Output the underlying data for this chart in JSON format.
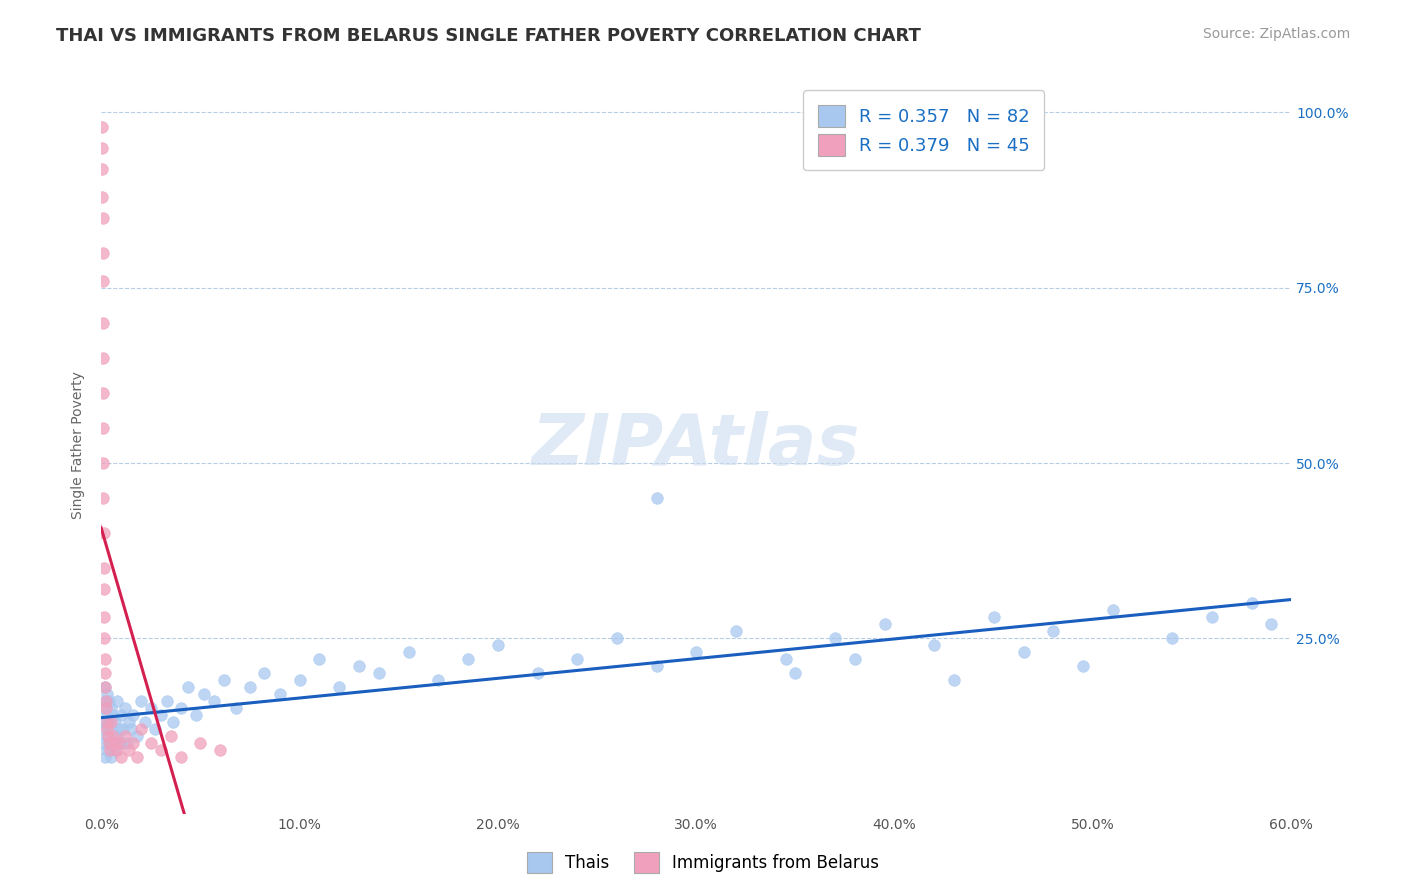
{
  "title": "THAI VS IMMIGRANTS FROM BELARUS SINGLE FATHER POVERTY CORRELATION CHART",
  "source": "Source: ZipAtlas.com",
  "ylabel": "Single Father Poverty",
  "xlim": [
    0.0,
    0.6
  ],
  "ylim": [
    0.0,
    1.05
  ],
  "xtick_labels": [
    "0.0%",
    "10.0%",
    "20.0%",
    "30.0%",
    "40.0%",
    "50.0%",
    "60.0%"
  ],
  "xtick_vals": [
    0.0,
    0.1,
    0.2,
    0.3,
    0.4,
    0.5,
    0.6
  ],
  "ytick_vals": [
    0.25,
    0.5,
    0.75,
    1.0
  ],
  "right_ytick_labels": [
    "25.0%",
    "50.0%",
    "75.0%",
    "100.0%"
  ],
  "thai_color": "#a8c8f0",
  "belarus_color": "#f0a0bc",
  "thai_line_color": "#1a5fbf",
  "belarus_line_color": "#d42050",
  "R_thai": 0.357,
  "N_thai": 82,
  "R_belarus": 0.379,
  "N_belarus": 45,
  "legend_label_thai": "Thais",
  "legend_label_belarus": "Immigrants from Belarus",
  "thai_x": [
    0.001,
    0.001,
    0.001,
    0.002,
    0.002,
    0.002,
    0.002,
    0.003,
    0.003,
    0.003,
    0.003,
    0.004,
    0.004,
    0.004,
    0.005,
    0.005,
    0.005,
    0.006,
    0.006,
    0.007,
    0.007,
    0.008,
    0.008,
    0.009,
    0.01,
    0.01,
    0.011,
    0.012,
    0.013,
    0.014,
    0.015,
    0.016,
    0.018,
    0.02,
    0.022,
    0.025,
    0.027,
    0.03,
    0.033,
    0.036,
    0.04,
    0.044,
    0.048,
    0.052,
    0.057,
    0.062,
    0.068,
    0.075,
    0.082,
    0.09,
    0.1,
    0.11,
    0.12,
    0.13,
    0.14,
    0.155,
    0.17,
    0.185,
    0.2,
    0.22,
    0.24,
    0.26,
    0.28,
    0.3,
    0.32,
    0.345,
    0.37,
    0.395,
    0.42,
    0.45,
    0.48,
    0.51,
    0.54,
    0.56,
    0.58,
    0.59,
    0.28,
    0.35,
    0.38,
    0.43,
    0.465,
    0.495
  ],
  "thai_y": [
    0.1,
    0.12,
    0.15,
    0.08,
    0.13,
    0.16,
    0.18,
    0.09,
    0.11,
    0.14,
    0.17,
    0.1,
    0.13,
    0.16,
    0.08,
    0.12,
    0.15,
    0.1,
    0.14,
    0.09,
    0.13,
    0.11,
    0.16,
    0.12,
    0.1,
    0.14,
    0.12,
    0.15,
    0.1,
    0.13,
    0.12,
    0.14,
    0.11,
    0.16,
    0.13,
    0.15,
    0.12,
    0.14,
    0.16,
    0.13,
    0.15,
    0.18,
    0.14,
    0.17,
    0.16,
    0.19,
    0.15,
    0.18,
    0.2,
    0.17,
    0.19,
    0.22,
    0.18,
    0.21,
    0.2,
    0.23,
    0.19,
    0.22,
    0.24,
    0.2,
    0.22,
    0.25,
    0.21,
    0.23,
    0.26,
    0.22,
    0.25,
    0.27,
    0.24,
    0.28,
    0.26,
    0.29,
    0.25,
    0.28,
    0.3,
    0.27,
    0.45,
    0.2,
    0.22,
    0.19,
    0.23,
    0.21
  ],
  "belarus_x": [
    0.0005,
    0.0005,
    0.0006,
    0.0006,
    0.0007,
    0.0007,
    0.0008,
    0.0008,
    0.0009,
    0.0009,
    0.001,
    0.001,
    0.001,
    0.0012,
    0.0013,
    0.0014,
    0.0015,
    0.0016,
    0.0018,
    0.002,
    0.002,
    0.0022,
    0.0025,
    0.003,
    0.003,
    0.0035,
    0.004,
    0.0045,
    0.005,
    0.006,
    0.007,
    0.008,
    0.009,
    0.01,
    0.012,
    0.014,
    0.016,
    0.018,
    0.02,
    0.025,
    0.03,
    0.035,
    0.04,
    0.05,
    0.06
  ],
  "belarus_y": [
    0.98,
    0.95,
    0.92,
    0.88,
    0.85,
    0.8,
    0.76,
    0.7,
    0.65,
    0.6,
    0.55,
    0.5,
    0.45,
    0.4,
    0.35,
    0.32,
    0.28,
    0.25,
    0.22,
    0.2,
    0.18,
    0.16,
    0.15,
    0.13,
    0.12,
    0.11,
    0.1,
    0.09,
    0.13,
    0.11,
    0.1,
    0.09,
    0.1,
    0.08,
    0.11,
    0.09,
    0.1,
    0.08,
    0.12,
    0.1,
    0.09,
    0.11,
    0.08,
    0.1,
    0.09
  ],
  "title_fontsize": 13,
  "axis_label_fontsize": 10,
  "tick_fontsize": 10,
  "legend_fontsize": 13,
  "source_fontsize": 10,
  "bg_color": "#ffffff",
  "grid_color": "#b0c8e0",
  "title_color": "#333333"
}
